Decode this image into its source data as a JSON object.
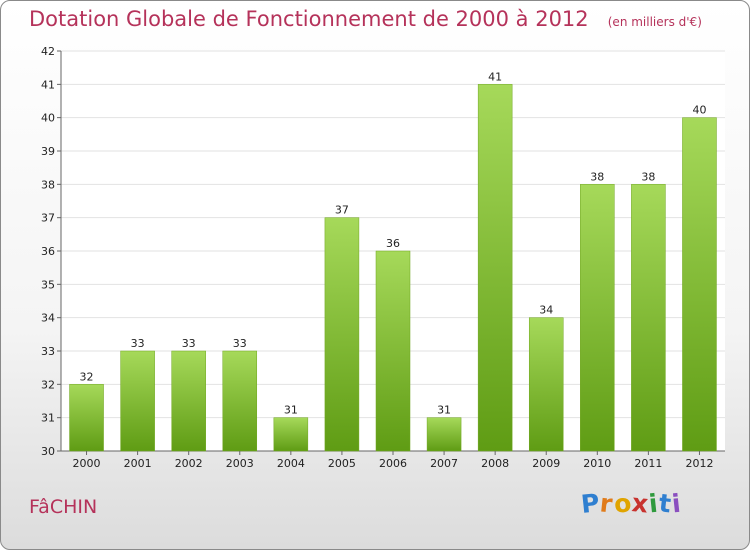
{
  "chart_data": {
    "type": "bar",
    "title": "Dotation Globale de Fonctionnement de 2000 à 2012",
    "unit_label": "(en milliers d'€)",
    "categories": [
      "2000",
      "2001",
      "2002",
      "2003",
      "2004",
      "2005",
      "2006",
      "2007",
      "2008",
      "2009",
      "2010",
      "2011",
      "2012"
    ],
    "values": [
      32,
      33,
      33,
      33,
      31,
      37,
      36,
      31,
      41,
      34,
      38,
      38,
      40
    ],
    "ylim": [
      30,
      42
    ],
    "yticks": [
      30,
      31,
      32,
      33,
      34,
      35,
      36,
      37,
      38,
      39,
      40,
      41,
      42
    ],
    "ytick_labels": [
      "30",
      "31",
      "32",
      "33",
      "34",
      "35",
      "36",
      "37",
      "38",
      "39",
      "40",
      "41",
      "42"
    ],
    "value_labels": [
      "32",
      "33",
      "33",
      "33",
      "31",
      "37",
      "36",
      "31",
      "41",
      "34",
      "38",
      "38",
      "40"
    ],
    "grid": true,
    "bar_color": "#86c02c",
    "bar_color_light": "#a6d95a",
    "bar_color_dark": "#5f9c14"
  },
  "commune_name": "FâCHIN",
  "logo": {
    "text": "Proxiti",
    "letters": [
      "P",
      "r",
      "o",
      "x",
      "i",
      "t",
      "i"
    ],
    "colors": [
      "#2f7fd0",
      "#e07b1a",
      "#e0a400",
      "#c8322e",
      "#2f9a3d",
      "#2f7fd0",
      "#8a4fbf"
    ]
  }
}
